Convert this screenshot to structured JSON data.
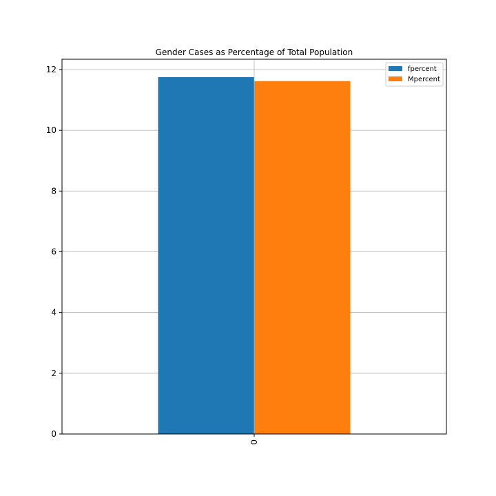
{
  "chart_data": {
    "type": "bar",
    "title": "Gender Cases as Percentage of Total Population",
    "xlabel": "",
    "ylabel": "",
    "categories": [
      "0"
    ],
    "series": [
      {
        "name": "fpercent",
        "values": [
          11.75
        ],
        "color": "#1f77b4"
      },
      {
        "name": "Mpercent",
        "values": [
          11.62
        ],
        "color": "#ff7f0e"
      }
    ],
    "ylim": [
      0,
      12.34
    ],
    "yticks": [
      0,
      2,
      4,
      6,
      8,
      10,
      12
    ],
    "grid": true,
    "legend_position": "top-right",
    "xtick_rotation": "vertical"
  }
}
